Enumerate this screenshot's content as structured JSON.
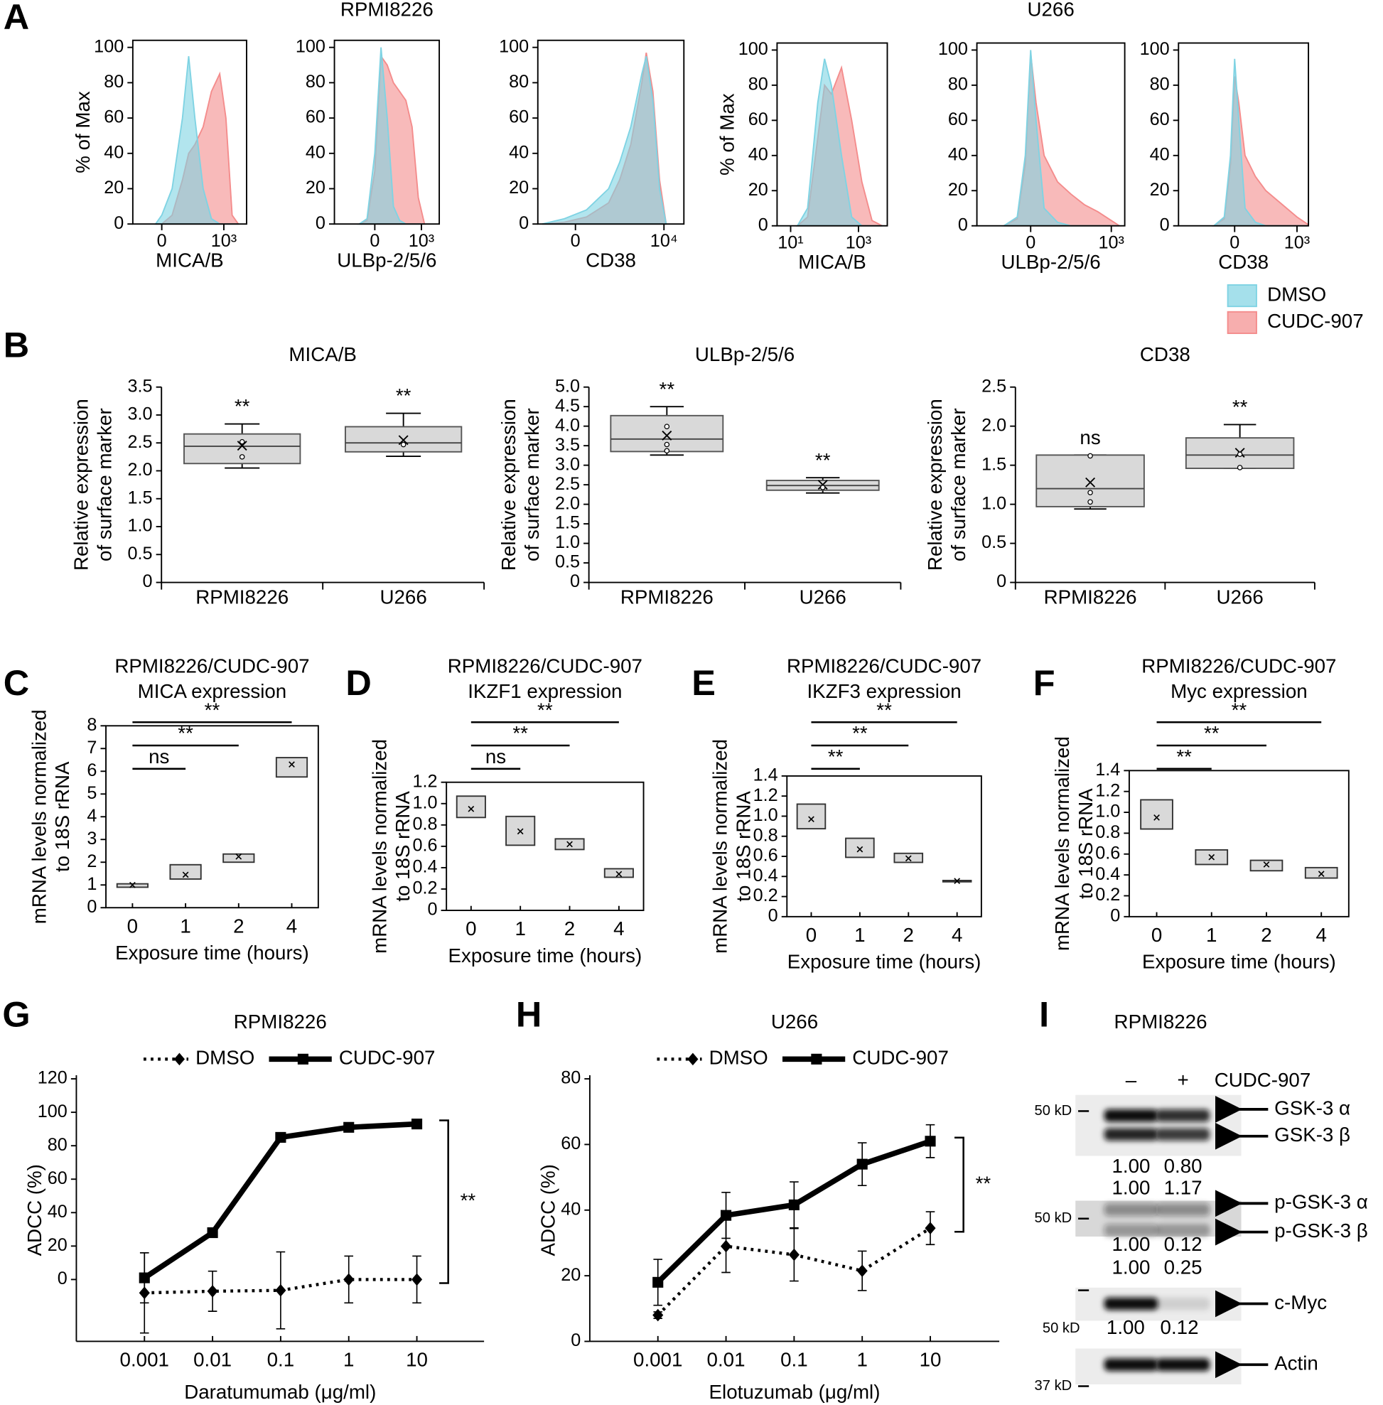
{
  "panel_labels": [
    "A",
    "B",
    "C",
    "D",
    "E",
    "F",
    "G",
    "H",
    "I"
  ],
  "chart_data": [
    {
      "type": "area",
      "xlabel": "MICA/B",
      "ylabel": "% of Max",
      "x": [
        -0.3,
        0,
        0.5,
        1,
        1.3,
        1.6,
        2,
        2.4,
        2.8,
        3.1,
        3.4,
        3.7
      ],
      "xlim": [
        -1.4,
        4.1
      ],
      "xticks": [
        0,
        {
          "value": 3,
          "label": "10³"
        }
      ],
      "ylim": [
        0,
        104
      ],
      "yticks": [
        0,
        20,
        40,
        60,
        80,
        100
      ],
      "series": [
        {
          "name": "DMSO",
          "color": "#7fd3e3",
          "values": [
            0,
            5,
            20,
            60,
            95,
            60,
            20,
            3,
            0,
            0,
            0,
            0
          ]
        },
        {
          "name": "CUDC-907",
          "color": "#f48c8c",
          "values": [
            0,
            0,
            5,
            25,
            40,
            45,
            55,
            75,
            85,
            60,
            5,
            0
          ]
        }
      ]
    },
    {
      "type": "area",
      "title": "RPMI8226",
      "xlabel": "ULBp-2/5/6",
      "x": [
        -1,
        -0.5,
        0,
        0.4,
        0.8,
        1.2,
        1.6,
        2,
        2.4,
        2.8,
        3.2
      ],
      "xlim": [
        -2.6,
        4.15
      ],
      "xticks": [
        0,
        {
          "value": 3,
          "label": "10³"
        }
      ],
      "ylim": [
        0,
        104
      ],
      "yticks": [
        0,
        20,
        40,
        60,
        80,
        100
      ],
      "series": [
        {
          "name": "DMSO",
          "color": "#7fd3e3",
          "values": [
            0,
            3,
            40,
            100,
            60,
            10,
            2,
            0,
            0,
            0,
            0
          ]
        },
        {
          "name": "CUDC-907",
          "color": "#f48c8c",
          "values": [
            0,
            2,
            30,
            95,
            90,
            80,
            75,
            70,
            55,
            15,
            0
          ]
        }
      ]
    },
    {
      "type": "area",
      "xlabel": "CD38",
      "x": [
        -1.5,
        -0.5,
        0.5,
        1.5,
        2,
        2.5,
        3,
        3.2,
        3.5,
        3.8,
        4.1
      ],
      "xlim": [
        -1.7,
        4.9
      ],
      "xticks": [
        0,
        {
          "value": 4,
          "label": "10⁴"
        }
      ],
      "ylim": [
        0,
        104
      ],
      "yticks": [
        0,
        20,
        40,
        60,
        80,
        100
      ],
      "series": [
        {
          "name": "DMSO",
          "color": "#7fd3e3",
          "values": [
            0,
            3,
            8,
            20,
            35,
            55,
            85,
            95,
            70,
            20,
            0
          ]
        },
        {
          "name": "CUDC-907",
          "color": "#f48c8c",
          "values": [
            0,
            1,
            4,
            12,
            25,
            45,
            80,
            97,
            75,
            25,
            0
          ]
        }
      ]
    },
    {
      "type": "area",
      "xlabel": "MICA/B",
      "ylabel": "% of Max",
      "x": [
        1.2,
        1.5,
        1.8,
        2.0,
        2.2,
        2.5,
        2.8,
        3.1,
        3.4,
        3.7
      ],
      "xlim": [
        0.6,
        3.85
      ],
      "xticks": [
        {
          "value": 1,
          "label": "10¹"
        },
        {
          "value": 3,
          "label": "10³"
        }
      ],
      "ylim": [
        0,
        104
      ],
      "yticks": [
        0,
        20,
        40,
        60,
        80,
        100
      ],
      "series": [
        {
          "name": "DMSO",
          "color": "#7fd3e3",
          "values": [
            0,
            10,
            70,
            95,
            80,
            40,
            5,
            0,
            0,
            0
          ]
        },
        {
          "name": "CUDC-907",
          "color": "#f48c8c",
          "values": [
            0,
            5,
            50,
            80,
            75,
            90,
            60,
            25,
            3,
            0
          ]
        }
      ]
    },
    {
      "type": "area",
      "title": "U266",
      "xlabel": "ULBp-2/5/6",
      "x": [
        -1,
        -0.5,
        -0.2,
        0,
        0.2,
        0.5,
        1,
        1.5,
        2,
        2.5,
        3,
        3.3
      ],
      "xlim": [
        -2,
        3.5
      ],
      "xticks": [
        0,
        {
          "value": 3,
          "label": "10³"
        }
      ],
      "ylim": [
        0,
        104
      ],
      "yticks": [
        0,
        20,
        40,
        60,
        80,
        100
      ],
      "series": [
        {
          "name": "DMSO",
          "color": "#7fd3e3",
          "values": [
            0,
            5,
            40,
            100,
            60,
            10,
            2,
            0,
            0,
            0,
            0,
            0
          ]
        },
        {
          "name": "CUDC-907",
          "color": "#f48c8c",
          "values": [
            0,
            4,
            35,
            98,
            70,
            40,
            25,
            18,
            12,
            8,
            3,
            0
          ]
        }
      ]
    },
    {
      "type": "area",
      "xlabel": "CD38",
      "x": [
        -1,
        -0.5,
        -0.2,
        0,
        0.2,
        0.5,
        1,
        1.5,
        2,
        2.5,
        3,
        3.5
      ],
      "xlim": [
        -2.7,
        3.55
      ],
      "xticks": [
        0,
        {
          "value": 3,
          "label": "10³"
        }
      ],
      "ylim": [
        0,
        104
      ],
      "yticks": [
        0,
        20,
        40,
        60,
        80,
        100
      ],
      "legend": "right",
      "series": [
        {
          "name": "DMSO",
          "color": "#7fd3e3",
          "values": [
            0,
            5,
            40,
            95,
            60,
            10,
            2,
            0,
            0,
            0,
            0,
            0
          ]
        },
        {
          "name": "CUDC-907",
          "color": "#f48c8c",
          "values": [
            0,
            4,
            35,
            85,
            70,
            40,
            28,
            20,
            15,
            10,
            5,
            1
          ]
        }
      ]
    },
    {
      "type": "box",
      "title": "MICA/B",
      "ylabel": [
        "Relative expression",
        "of surface marker"
      ],
      "categories": [
        "RPMI8226",
        "U266"
      ],
      "color": "#d9d9d9",
      "ylim": [
        0,
        3.5
      ],
      "yticks": [
        0,
        0.5,
        {
          "value": 1,
          "label": "1.0"
        },
        1.5,
        {
          "value": 2,
          "label": "2.0"
        },
        2.5,
        {
          "value": 3,
          "label": "3.0"
        },
        3.5
      ],
      "boxes": [
        {
          "whislo": 2.05,
          "q1": 2.13,
          "med": 2.44,
          "q3": 2.66,
          "whishi": 2.84,
          "mean": 2.45,
          "points": [
            2.52,
            2.25
          ]
        },
        {
          "whislo": 2.26,
          "q1": 2.34,
          "med": 2.5,
          "q3": 2.79,
          "whishi": 3.03,
          "mean": 2.55,
          "points": [
            2.47
          ]
        }
      ],
      "annotations": [
        "**",
        "**"
      ]
    },
    {
      "type": "box",
      "title": "ULBp-2/5/6",
      "ylabel": [
        "Relative expression",
        "of surface marker"
      ],
      "categories": [
        "RPMI8226",
        "U266"
      ],
      "color": "#d9d9d9",
      "ylim": [
        0,
        5
      ],
      "yticks": [
        0,
        0.5,
        {
          "value": 1,
          "label": "1.0"
        },
        1.5,
        {
          "value": 2,
          "label": "2.0"
        },
        2.5,
        {
          "value": 3,
          "label": "3.0"
        },
        3.5,
        {
          "value": 4,
          "label": "4.0"
        },
        4.5,
        {
          "value": 5,
          "label": "5.0"
        }
      ],
      "boxes": [
        {
          "whislo": 3.26,
          "q1": 3.35,
          "med": 3.67,
          "q3": 4.27,
          "whishi": 4.5,
          "mean": 3.76,
          "points": [
            3.99,
            3.53,
            3.37
          ]
        },
        {
          "whislo": 2.29,
          "q1": 2.36,
          "med": 2.48,
          "q3": 2.61,
          "whishi": 2.68,
          "mean": 2.5,
          "points": [
            2.43
          ]
        }
      ],
      "annotations": [
        "**",
        "**"
      ]
    },
    {
      "type": "box",
      "title": "CD38",
      "ylabel": [
        "Relative expression",
        "of surface marker"
      ],
      "categories": [
        "RPMI8226",
        "U266"
      ],
      "color": "#d9d9d9",
      "ylim": [
        0,
        2.5
      ],
      "yticks": [
        0,
        0.5,
        {
          "value": 1,
          "label": "1.0"
        },
        1.5,
        {
          "value": 2,
          "label": "2.0"
        },
        2.5
      ],
      "boxes": [
        {
          "whislo": 0.94,
          "q1": 0.97,
          "med": 1.2,
          "q3": 1.63,
          "whishi": 1.63,
          "mean": 1.28,
          "points": [
            1.62,
            1.15,
            1.03
          ]
        },
        {
          "whislo": 1.46,
          "q1": 1.46,
          "med": 1.63,
          "q3": 1.85,
          "whishi": 2.02,
          "mean": 1.66,
          "points": [
            1.64,
            1.47
          ]
        }
      ],
      "annotations": [
        "ns",
        "**"
      ]
    },
    {
      "type": "range-box",
      "title": [
        "RPMI8226/CUDC-907",
        "MICA expression"
      ],
      "ylabel": [
        "mRNA levels normalized",
        "to 18S rRNA"
      ],
      "xlabel": "Exposure time (hours)",
      "categories": [
        "0",
        "1",
        "2",
        "4"
      ],
      "color": "#d9d9d9",
      "ylim": [
        0,
        8
      ],
      "yticks": [
        0,
        1,
        2,
        3,
        4,
        5,
        6,
        7,
        8
      ],
      "boxes": [
        {
          "low": 0.9,
          "high": 1.05,
          "mean": 1.0
        },
        {
          "low": 1.26,
          "high": 1.89,
          "mean": 1.45
        },
        {
          "low": 2.0,
          "high": 2.36,
          "mean": 2.25
        },
        {
          "low": 5.75,
          "high": 6.6,
          "mean": 6.3
        }
      ],
      "comparisons": [
        "ns",
        "**",
        "**"
      ]
    },
    {
      "type": "range-box",
      "title": [
        "RPMI8226/CUDC-907",
        "IKZF1 expression"
      ],
      "ylabel": [
        "mRNA levels normalized",
        "to 18S rRNA"
      ],
      "xlabel": "Exposure time (hours)",
      "categories": [
        "0",
        "1",
        "2",
        "4"
      ],
      "color": "#d9d9d9",
      "ylim": [
        0,
        1.2
      ],
      "yticks": [
        0,
        0.2,
        0.4,
        0.6,
        0.8,
        {
          "value": 1,
          "label": "1.0"
        },
        1.2
      ],
      "boxes": [
        {
          "low": 0.87,
          "high": 1.07,
          "mean": 0.95
        },
        {
          "low": 0.61,
          "high": 0.88,
          "mean": 0.74
        },
        {
          "low": 0.57,
          "high": 0.67,
          "mean": 0.62
        },
        {
          "low": 0.31,
          "high": 0.39,
          "mean": 0.34
        }
      ],
      "comparisons": [
        "ns",
        "**",
        "**"
      ]
    },
    {
      "type": "range-box",
      "title": [
        "RPMI8226/CUDC-907",
        "IKZF3 expression"
      ],
      "ylabel": [
        "mRNA levels normalized",
        "to 18S rRNA"
      ],
      "xlabel": "Exposure time (hours)",
      "categories": [
        "0",
        "1",
        "2",
        "4"
      ],
      "color": "#d9d9d9",
      "ylim": [
        0,
        1.4
      ],
      "yticks": [
        0,
        0.2,
        0.4,
        0.6,
        0.8,
        {
          "value": 1,
          "label": "1.0"
        },
        1.2,
        1.4
      ],
      "boxes": [
        {
          "low": 0.875,
          "high": 1.12,
          "mean": 0.97
        },
        {
          "low": 0.59,
          "high": 0.78,
          "mean": 0.67
        },
        {
          "low": 0.54,
          "high": 0.63,
          "mean": 0.58
        },
        {
          "low": 0.35,
          "high": 0.36,
          "mean": 0.355
        }
      ],
      "comparisons": [
        "**",
        "**",
        "**"
      ]
    },
    {
      "type": "range-box",
      "title": [
        "RPMI8226/CUDC-907",
        "Myc expression"
      ],
      "ylabel": [
        "mRNA levels normalized",
        "to 18S rRNA"
      ],
      "xlabel": "Exposure time (hours)",
      "categories": [
        "0",
        "1",
        "2",
        "4"
      ],
      "color": "#d9d9d9",
      "ylim": [
        0,
        1.4
      ],
      "yticks": [
        0,
        0.2,
        0.4,
        0.6,
        0.8,
        {
          "value": 1,
          "label": "1.0"
        },
        1.2,
        1.4
      ],
      "boxes": [
        {
          "low": 0.84,
          "high": 1.12,
          "mean": 0.95
        },
        {
          "low": 0.5,
          "high": 0.64,
          "mean": 0.57
        },
        {
          "low": 0.44,
          "high": 0.54,
          "mean": 0.5
        },
        {
          "low": 0.37,
          "high": 0.47,
          "mean": 0.41
        }
      ],
      "comparisons": [
        "**",
        "**",
        "**"
      ]
    },
    {
      "type": "line",
      "title": "RPMI8226",
      "xlabel": "Daratumumab (μg/ml)",
      "ylabel": "ADCC (%)",
      "categories": [
        "0.001",
        "0.01",
        "0.1",
        "1",
        "10"
      ],
      "ylim": [
        -37,
        120
      ],
      "yticks": [
        0,
        20,
        40,
        60,
        80,
        100,
        120
      ],
      "legend": "top",
      "significance": "**",
      "series": [
        {
          "name": "DMSO",
          "color": "#000000",
          "style": "dotted",
          "marker": "diamond",
          "values": [
            -8,
            -7,
            -6.5,
            0,
            0
          ],
          "errors": [
            24,
            12,
            23,
            14,
            14
          ]
        },
        {
          "name": "CUDC-907",
          "color": "#000000",
          "style": "solid",
          "marker": "square",
          "values": [
            1,
            28,
            85,
            91,
            93
          ],
          "errors": [
            15,
            1,
            1,
            1,
            1
          ]
        }
      ]
    },
    {
      "type": "line",
      "title": "U266",
      "xlabel": "Elotuzumab (μg/ml)",
      "ylabel": "ADCC (%)",
      "categories": [
        "0.001",
        "0.01",
        "0.1",
        "1",
        "10"
      ],
      "ylim": [
        0,
        80
      ],
      "yticks": [
        0,
        20,
        40,
        60,
        80
      ],
      "legend": "top",
      "significance": "**",
      "series": [
        {
          "name": "DMSO",
          "color": "#000000",
          "style": "dotted",
          "marker": "diamond",
          "values": [
            8,
            29,
            26.4,
            21.5,
            34.5
          ],
          "errors": [
            1,
            8,
            8,
            6,
            5
          ]
        },
        {
          "name": "CUDC-907",
          "color": "#000000",
          "style": "solid",
          "marker": "square",
          "values": [
            18,
            38.4,
            41.6,
            54,
            61
          ],
          "errors": [
            7,
            7,
            7,
            6.5,
            5
          ]
        }
      ]
    }
  ],
  "blot": {
    "title": "RPMI8226",
    "lane_labels": [
      "–",
      "+"
    ],
    "treatment": "CUDC-907",
    "panels": [
      {
        "marker": "50 kD",
        "bands": [
          "GSK-3 α",
          "GSK-3 β"
        ],
        "quant": [
          [
            "1.00",
            "0.80"
          ],
          [
            "1.00",
            "1.17"
          ]
        ]
      },
      {
        "marker": "50 kD",
        "bands": [
          "p-GSK-3 α",
          "p-GSK-3 β"
        ],
        "quant": [
          [
            "1.00",
            "0.12"
          ],
          [
            "1.00",
            "0.25"
          ]
        ]
      },
      {
        "marker": "50 kD",
        "bands": [
          "c-Myc"
        ],
        "quant": [
          [
            "1.00",
            "0.12"
          ]
        ]
      },
      {
        "marker": "37 kD",
        "bands": [
          "Actin"
        ]
      }
    ]
  }
}
